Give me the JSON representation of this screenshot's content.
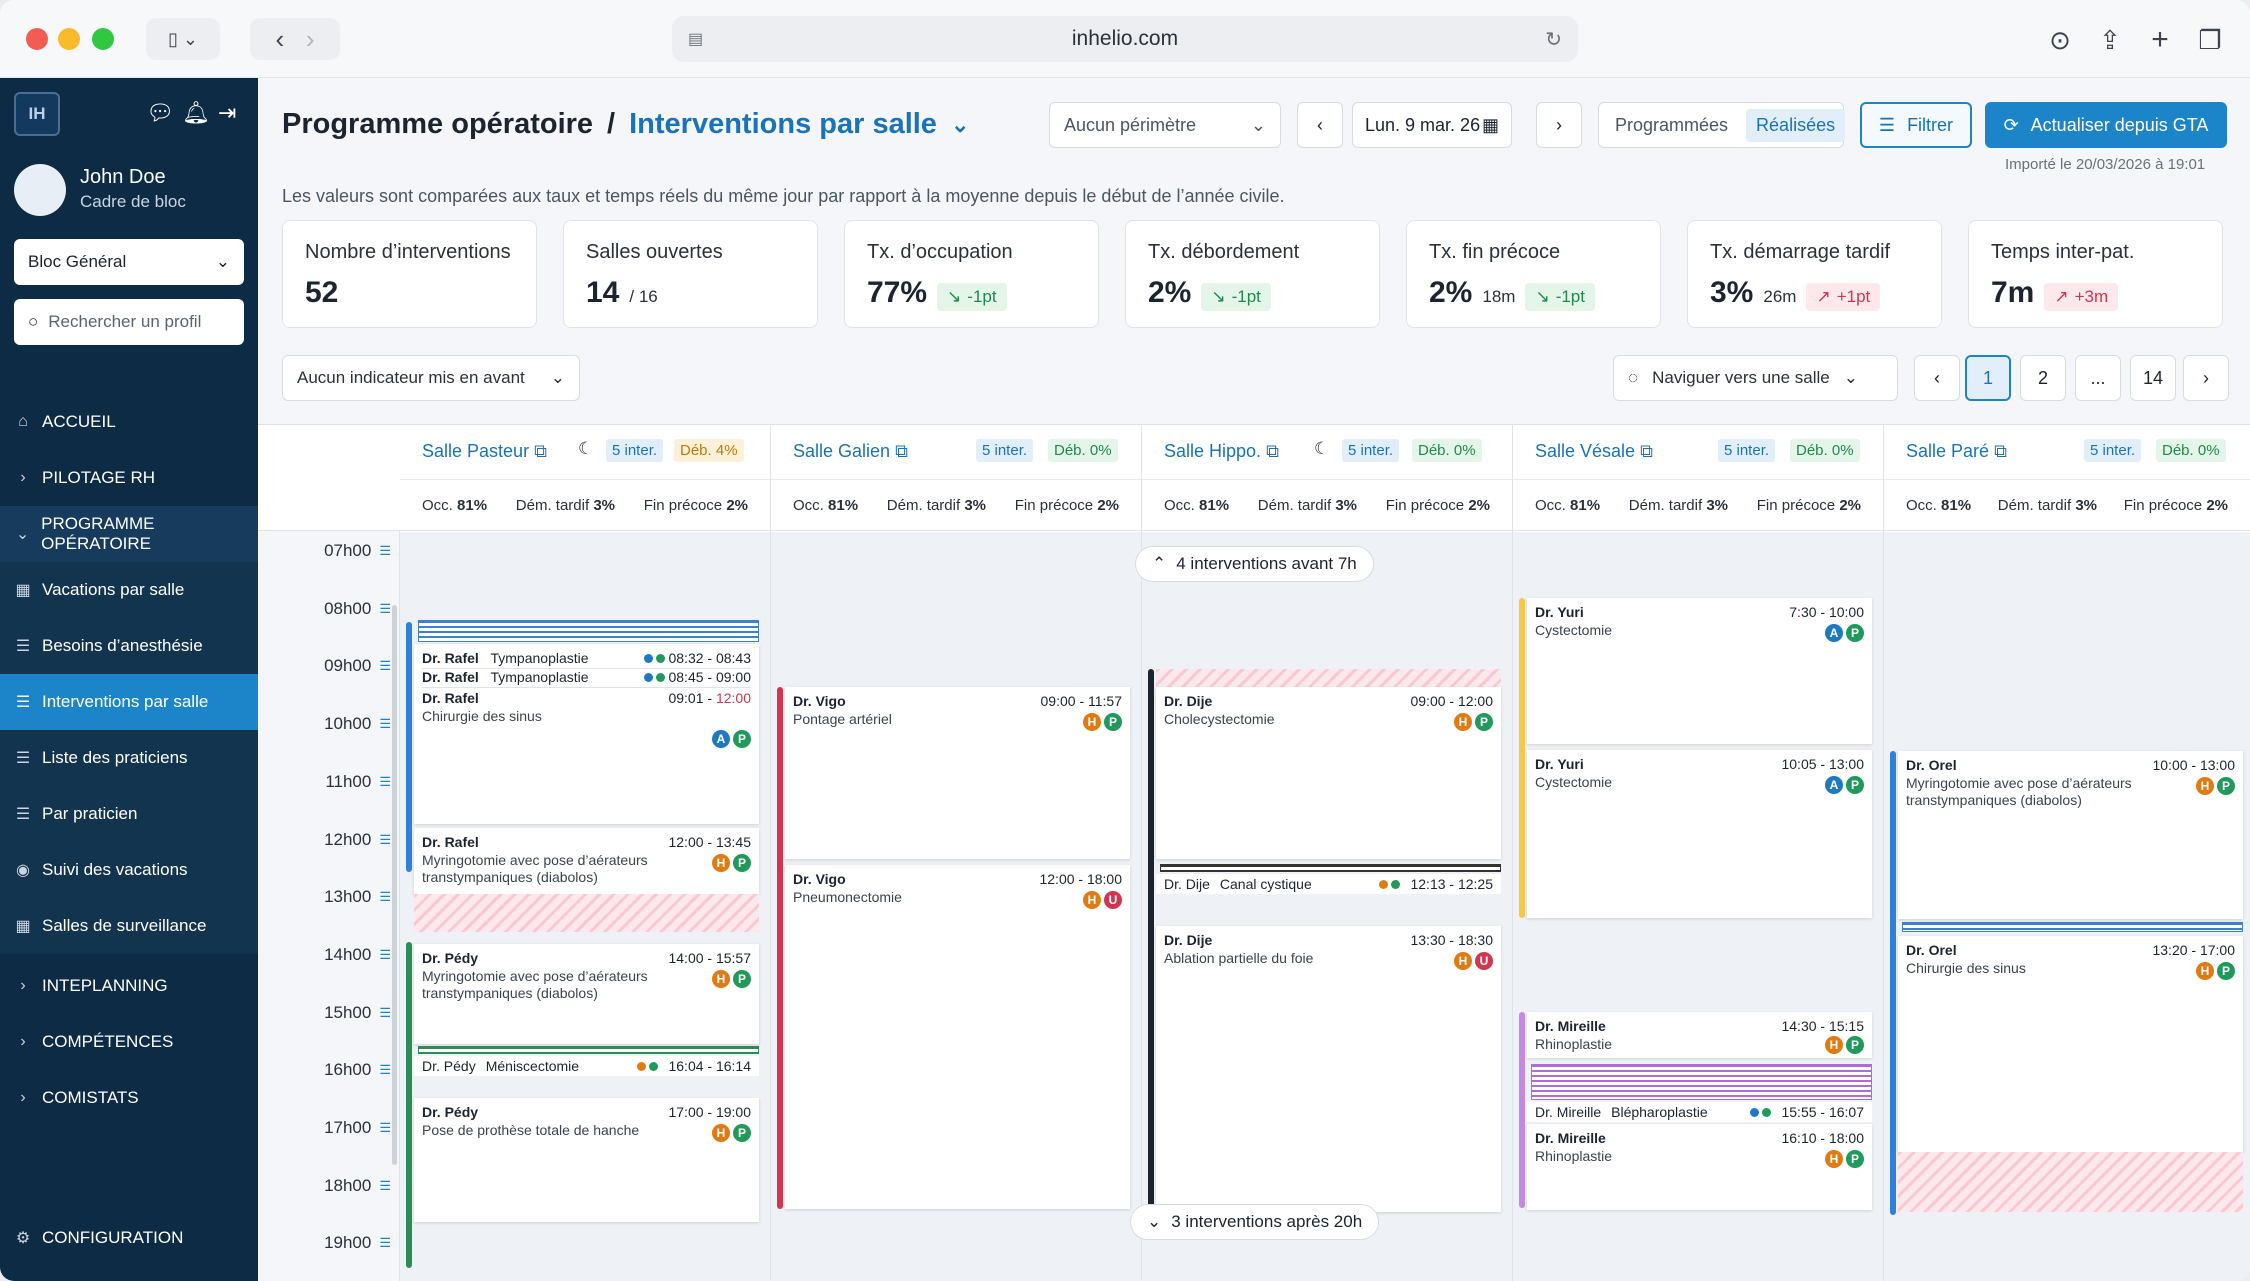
{
  "browser": {
    "url": "inhelio.com"
  },
  "sidebar": {
    "logo": "IH",
    "user": {
      "name": "John Doe",
      "role": "Cadre de bloc"
    },
    "bloc": "Bloc Général",
    "search_placeholder": "Rechercher un profil",
    "items": [
      {
        "label": "ACCUEIL"
      },
      {
        "label": "PILOTAGE RH"
      },
      {
        "label": "PROGRAMME OPÉRATOIRE"
      },
      {
        "label": "Vacations par salle"
      },
      {
        "label": "Besoins d’anesthésie"
      },
      {
        "label": "Interventions par salle"
      },
      {
        "label": "Liste des praticiens"
      },
      {
        "label": "Par praticien"
      },
      {
        "label": "Suivi des vacations"
      },
      {
        "label": "Salles de surveillance"
      },
      {
        "label": "INTEPLANNING"
      },
      {
        "label": "COMPÉTENCES"
      },
      {
        "label": "COMISTATS"
      },
      {
        "label": "CONFIGURATION"
      }
    ]
  },
  "header": {
    "title": "Programme opératoire",
    "separator": "/",
    "subtitle": "Interventions par salle",
    "perimetre": "Aucun périmètre",
    "date": "Lun. 9 mar. 26",
    "toggle": [
      "Programmées",
      "Réalisées"
    ],
    "filter": "Filtrer",
    "refresh": "Actualiser depuis GTA",
    "imported": "Importé le 20/03/2026 à 19:01",
    "description": "Les valeurs sont comparées aux taux et temps réels du même jour par rapport à la moyenne depuis le début de l’année civile."
  },
  "kpis": [
    {
      "label": "Nombre d’interventions",
      "value": "52",
      "sub": "",
      "delta": "",
      "trend": ""
    },
    {
      "label": "Salles ouvertes",
      "value": "14",
      "sub": "/ 16",
      "delta": "",
      "trend": ""
    },
    {
      "label": "Tx. d’occupation",
      "value": "77%",
      "sub": "",
      "delta": "-1pt",
      "trend": "down"
    },
    {
      "label": "Tx. débordement",
      "value": "2%",
      "sub": "",
      "delta": "-1pt",
      "trend": "down"
    },
    {
      "label": "Tx. fin précoce",
      "value": "2%",
      "sub": "18m",
      "delta": "-1pt",
      "trend": "down"
    },
    {
      "label": "Tx. démarrage tardif",
      "value": "3%",
      "sub": "26m",
      "delta": "+1pt",
      "trend": "up"
    },
    {
      "label": "Temps inter-pat.",
      "value": "7m",
      "sub": "",
      "delta": "+3m",
      "trend": "up"
    }
  ],
  "indicator_select": "Aucun indicateur mis en avant",
  "room_nav": "Naviguer vers une salle",
  "pagination": [
    "1",
    "2",
    "...",
    "14"
  ],
  "hours": [
    "07h00",
    "08h00",
    "09h00",
    "10h00",
    "11h00",
    "12h00",
    "13h00",
    "14h00",
    "15h00",
    "16h00",
    "17h00",
    "18h00",
    "19h00"
  ],
  "rooms": [
    {
      "name": "Salle Pasteur",
      "inter": "5 inter.",
      "deb": "Déb. 4%",
      "occ": "81%",
      "dem": "3%",
      "fin": "2%"
    },
    {
      "name": "Salle Galien",
      "inter": "5 inter.",
      "deb": "Déb. 0%",
      "occ": "81%",
      "dem": "3%",
      "fin": "2%"
    },
    {
      "name": "Salle Hippo.",
      "inter": "5 inter.",
      "deb": "Déb. 0%",
      "occ": "81%",
      "dem": "3%",
      "fin": "2%"
    },
    {
      "name": "Salle Vésale",
      "inter": "5 inter.",
      "deb": "Déb. 0%",
      "occ": "81%",
      "dem": "3%",
      "fin": "2%"
    },
    {
      "name": "Salle Paré",
      "inter": "5 inter.",
      "deb": "Déb. 0%",
      "occ": "81%",
      "dem": "3%",
      "fin": "2%"
    }
  ],
  "stat_labels": {
    "occ": "Occ.",
    "dem": "Dém. tardif",
    "fin": "Fin précoce"
  },
  "before": "4 interventions avant 7h",
  "after": "3 interventions après 20h",
  "cards": {
    "p1": {
      "dr": "Dr. Rafel",
      "proc": "Tympanoplastie",
      "time": "08:32 - 08:43"
    },
    "p2": {
      "dr": "Dr. Rafel",
      "proc": "Tympanoplastie",
      "time": "08:45 - 09:00"
    },
    "p3": {
      "dr": "Dr. Rafel",
      "proc": "Chirurgie des sinus",
      "time": "09:01 - ",
      "time_late": "12:00"
    },
    "p4": {
      "dr": "Dr. Rafel",
      "proc": "Myringotomie avec pose d’aérateurs transtympaniques (diabolos)",
      "time": "12:00 - 13:45"
    },
    "p5": {
      "dr": "Dr. Pédy",
      "proc": "Myringotomie avec pose d’aérateurs transtympaniques (diabolos)",
      "time": "14:00 - 15:57"
    },
    "p6": {
      "dr": "Dr. Pédy",
      "proc": "Méniscectomie",
      "time": "16:04 - 16:14"
    },
    "p7": {
      "dr": "Dr. Pédy",
      "proc": "Pose de prothèse totale de hanche",
      "time": "17:00 - 19:00"
    },
    "g1": {
      "dr": "Dr. Vigo",
      "proc": "Pontage artériel",
      "time": "09:00 - 11:57"
    },
    "g2": {
      "dr": "Dr. Vigo",
      "proc": "Pneumonectomie",
      "time": "12:00 - 18:00"
    },
    "h1": {
      "dr": "Dr. Dije",
      "proc": "Cholecystectomie",
      "time": "09:00 - 12:00"
    },
    "h2": {
      "dr": "Dr. Dije",
      "proc": "Canal cystique",
      "time": "12:13 - 12:25"
    },
    "h3": {
      "dr": "Dr. Dije",
      "proc": "Ablation partielle du foie",
      "time": "13:30 - 18:30"
    },
    "v1": {
      "dr": "Dr. Yuri",
      "proc": "Cystectomie",
      "time": "7:30 - 10:00"
    },
    "v2": {
      "dr": "Dr. Yuri",
      "proc": "Cystectomie",
      "time": "10:05 - 13:00"
    },
    "v3": {
      "dr": "Dr. Mireille",
      "proc": "Rhinoplastie",
      "time": "14:30 - 15:15"
    },
    "v4": {
      "dr": "Dr. Mireille",
      "proc": "Blépharoplastie",
      "time": "15:55 - 16:07"
    },
    "v5": {
      "dr": "Dr. Mireille",
      "proc": "Rhinoplastie",
      "time": "16:10 - 18:00"
    },
    "r1": {
      "dr": "Dr. Orel",
      "proc": "Myringotomie avec pose d’aérateurs transtympaniques (diabolos)",
      "time": "10:00 - 13:00"
    },
    "r2": {
      "dr": "Dr. Orel",
      "proc": "Chirurgie des sinus",
      "time": "13:20 - 17:00"
    }
  },
  "icon_letters": {
    "h": "H",
    "p": "P",
    "a": "A",
    "u": "U"
  },
  "colors": {
    "sidebar": "#0d2b45",
    "active": "#1c84c9",
    "accent": "#1a73b8",
    "late": "#d1364f"
  }
}
